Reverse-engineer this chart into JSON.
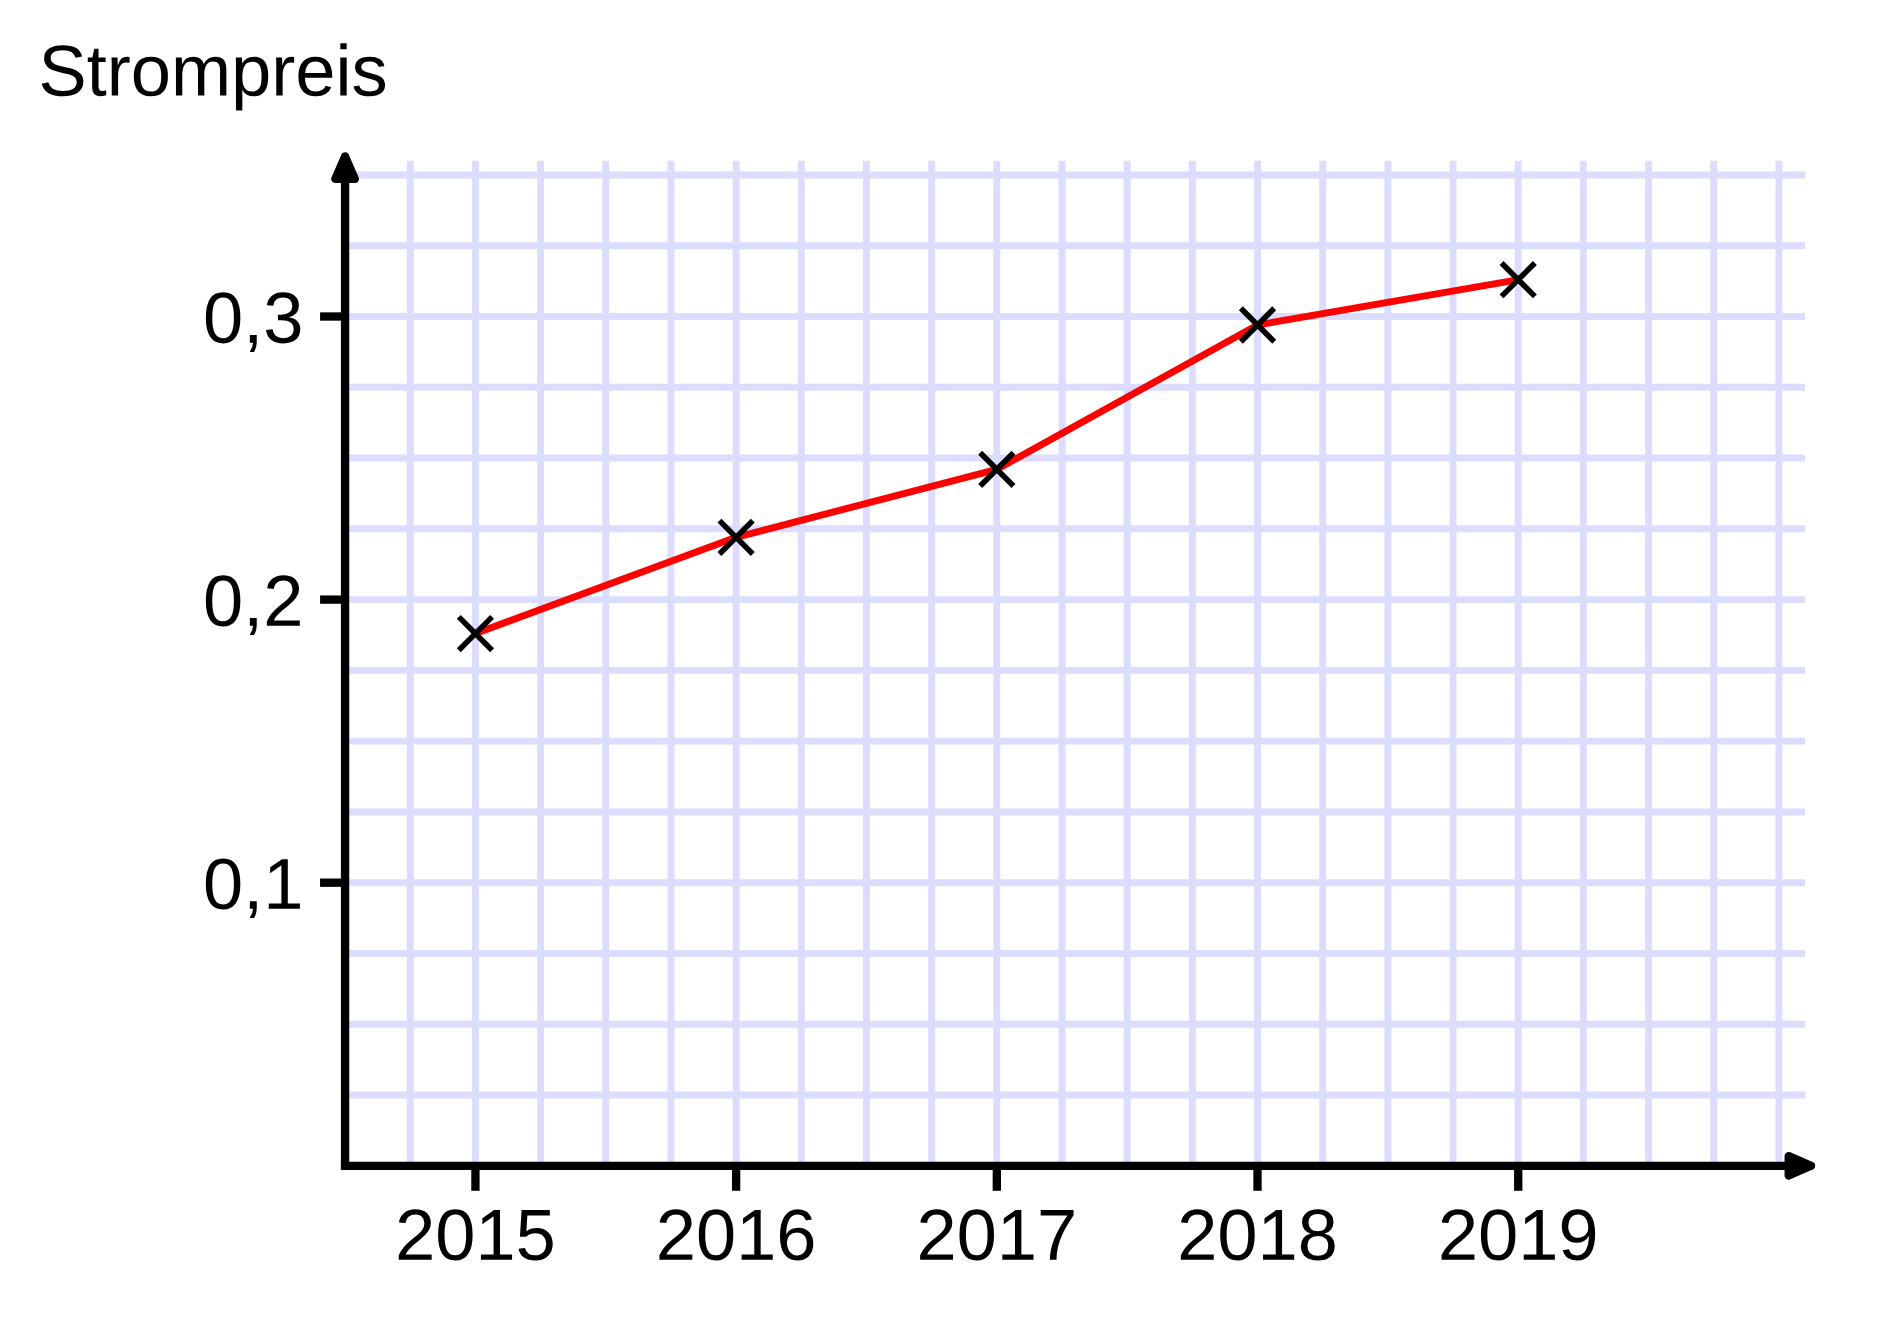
{
  "chart_data": {
    "type": "line",
    "ylabel": "Strompreis",
    "x": [
      2015,
      2016,
      2017,
      2018,
      2019
    ],
    "series": [
      {
        "color": "#ff0000",
        "values": [
          0.188,
          0.222,
          0.246,
          0.297,
          0.313
        ]
      }
    ],
    "xlim": [
      2014.5,
      2020.1
    ],
    "xticks": [
      2015,
      2016,
      2017,
      2018,
      2019
    ],
    "ylim": [
      0,
      0.355
    ],
    "yticks": [
      {
        "value": 0.1,
        "label": "0,1"
      },
      {
        "value": 0.2,
        "label": "0,2"
      },
      {
        "value": 0.3,
        "label": "0,3"
      }
    ],
    "grid": true,
    "marker": "cross",
    "line_style": "solid"
  }
}
